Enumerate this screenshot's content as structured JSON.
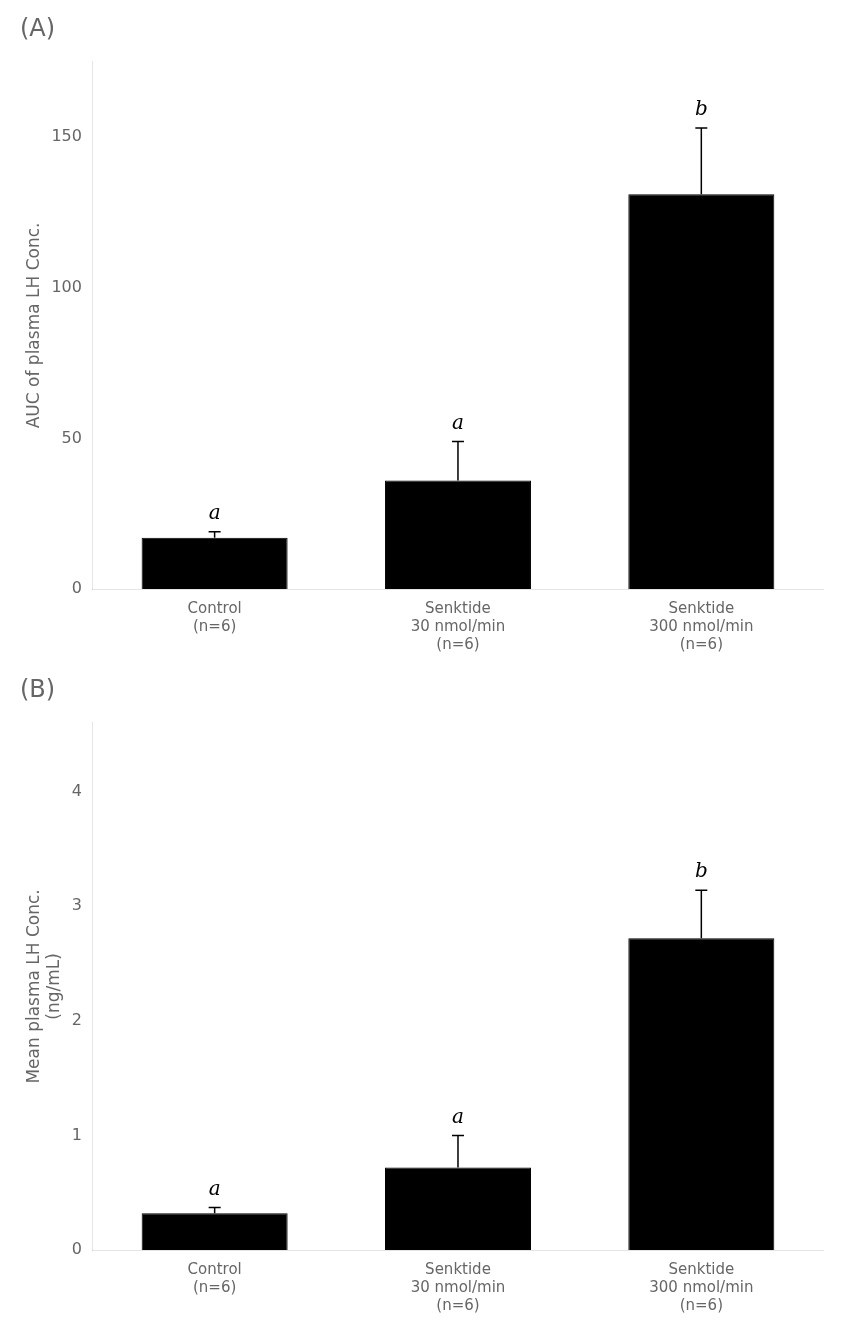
{
  "chart_data": [
    {
      "type": "bar",
      "title": "(A)",
      "categories": [
        "Control\n(n=6)",
        "Senktide\n30 nmol/min\n(n=6)",
        "Senktide\n300 nmol/min\n(n=6)"
      ],
      "values": [
        17,
        36,
        131
      ],
      "errors": [
        2,
        13,
        22
      ],
      "color": "#000000",
      "ylabel": "AUC of plasma LH Conc.",
      "ylim": [
        0,
        175
      ],
      "yticks": [
        0,
        50,
        100,
        150
      ],
      "annotations": [
        "a",
        "a",
        "b"
      ],
      "grid": false
    },
    {
      "type": "bar",
      "title": "(B)",
      "categories": [
        "Control\n(n=6)",
        "Senktide\n30 nmol/min\n(n=6)",
        "Senktide\n300 nmol/min\n(n=6)"
      ],
      "values": [
        0.32,
        0.72,
        2.72
      ],
      "errors": [
        0.05,
        0.28,
        0.42
      ],
      "color": "#000000",
      "ylabel": "Mean plasma LH Conc.\n(ng/mL)",
      "ylim": [
        0,
        4.6
      ],
      "yticks": [
        0,
        1,
        2,
        3,
        4
      ],
      "annotations": [
        "a",
        "a",
        "b"
      ],
      "grid": false
    }
  ]
}
